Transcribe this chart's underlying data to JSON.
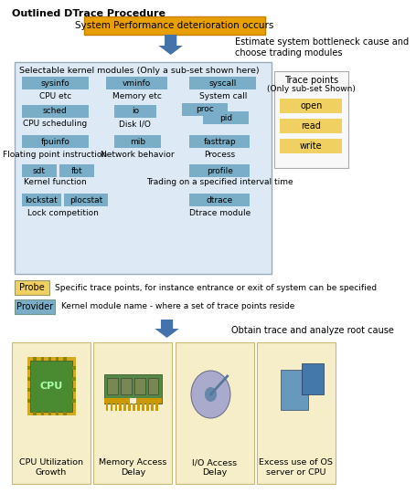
{
  "title": "Outlined DTrace Procedure",
  "bg_color": "#ffffff",
  "top_box": {
    "text": "System Performance deterioration occurs",
    "bg": "#e8a000",
    "border": "#c88000"
  },
  "arrow1_text": "Estimate system bottleneck cause and\nchoose trading modules",
  "kernel_box_label": "Selectable kernel modules (Only a sub-set shown here)",
  "kernel_bg": "#ddeaf5",
  "provider_color": "#7aaec8",
  "probe_color": "#f0d060",
  "trace_items": [
    "open",
    "read",
    "write"
  ],
  "legend": [
    {
      "label": "Probe",
      "color": "#f0d060",
      "text": "Specific trace points, for instance entrance or exit of system can be specified"
    },
    {
      "label": "Provider",
      "color": "#7aaec8",
      "text": "Kernel module name - where a set of trace points reside"
    }
  ],
  "arrow2_text": "Obtain trace and analyze root cause",
  "bottom_labels": [
    "CPU Utilization\nGrowth",
    "Memory Access\nDelay",
    "I/O Access\nDelay",
    "Excess use of OS\nserver or CPU"
  ],
  "bottom_bg": "#f5eec8",
  "bottom_border": "#c8b878"
}
